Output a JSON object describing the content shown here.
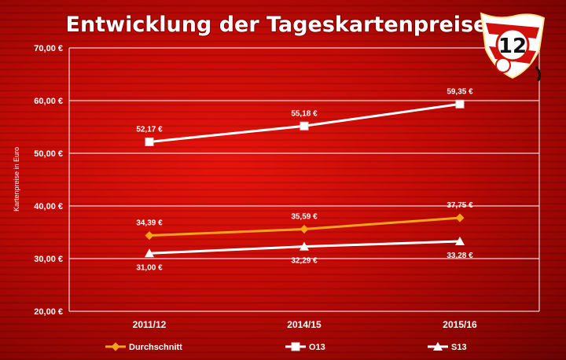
{
  "chart_data": {
    "type": "line",
    "title": "Entwicklung der Tageskartenpreise",
    "ylabel": "Kartenpreise in Euro",
    "xlabel": "",
    "ylim": [
      20,
      70
    ],
    "yticks": [
      20,
      30,
      40,
      50,
      60,
      70
    ],
    "ytick_labels": [
      "20,00 €",
      "30,00 €",
      "40,00 €",
      "50,00 €",
      "60,00 €",
      "70,00 €"
    ],
    "categories": [
      "2011/12",
      "2014/15",
      "2015/16"
    ],
    "grid": "horizontal",
    "legend_position": "bottom",
    "series": [
      {
        "name": "Durchschnitt",
        "color": "#f5a21c",
        "marker": "diamond",
        "values": [
          34.39,
          35.59,
          37.75
        ],
        "labels": [
          "34,39 €",
          "35,59 €",
          "37,75 €"
        ],
        "label_position": "above"
      },
      {
        "name": "O13",
        "color": "#ffffff",
        "marker": "square",
        "values": [
          52.17,
          55.18,
          59.35
        ],
        "labels": [
          "52,17 €",
          "55,18 €",
          "59,35 €"
        ],
        "label_position": "above"
      },
      {
        "name": "S13",
        "color": "#ffffff",
        "marker": "triangle",
        "values": [
          31.0,
          32.29,
          33.28
        ],
        "labels": [
          "31,00 €",
          "32,29 €",
          "33,28 €"
        ],
        "label_position": "below"
      }
    ]
  },
  "logo": {
    "icon": "club-crest-icon",
    "text": "12"
  }
}
